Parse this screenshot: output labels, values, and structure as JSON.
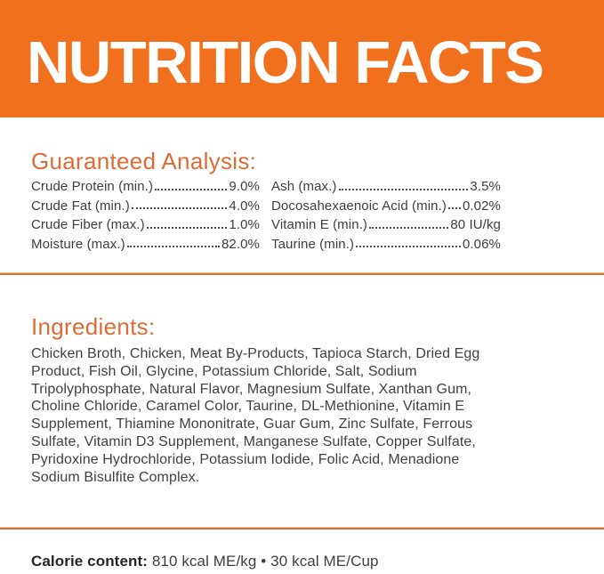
{
  "header": {
    "title": "NUTRITION FACTS"
  },
  "analysis": {
    "heading": "Guaranteed Analysis:",
    "left": [
      {
        "label": "Crude Protein (min.)",
        "value": "9.0%"
      },
      {
        "label": "Crude Fat (min.)",
        "value": "4.0%"
      },
      {
        "label": "Crude Fiber (max.)",
        "value": "1.0%"
      },
      {
        "label": "Moisture (max.)",
        "value": "82.0%"
      }
    ],
    "right": [
      {
        "label": "Ash (max.)",
        "value": "3.5%"
      },
      {
        "label": "Docosahexaenoic Acid (min.)",
        "value": "0.02%"
      },
      {
        "label": "Vitamin E (min.)",
        "value": "80 IU/kg"
      },
      {
        "label": "Taurine (min.)",
        "value": "0.06%"
      }
    ]
  },
  "ingredients": {
    "heading": "Ingredients:",
    "lines": [
      "Chicken Broth, Chicken, Meat By-Products, Tapioca Starch, Dried Egg",
      "Product, Fish Oil, Glycine, Potassium Chloride, Salt, Sodium",
      "Tripolyphosphate, Natural Flavor, Magnesium Sulfate, Xanthan Gum,",
      "Choline Chloride, Caramel Color, Taurine, DL-Methionine, Vitamin E",
      "Supplement, Thiamine Mononitrate, Guar Gum, Zinc Sulfate, Ferrous",
      "Sulfate, Vitamin D3 Supplement, Manganese Sulfate, Copper Sulfate,",
      "Pyridoxine Hydrochloride, Potassium Iodide, Folic Acid, Menadione",
      "Sodium Bisulfite Complex."
    ]
  },
  "calories": {
    "label": "Calorie content:",
    "value": "810 kcal ME/kg • 30 kcal ME/Cup"
  },
  "colors": {
    "header_orange": "#F0701E",
    "accent_orange": "#DB6C35",
    "rule_orange": "#D96E33",
    "body_text": "#3E3E3E"
  }
}
